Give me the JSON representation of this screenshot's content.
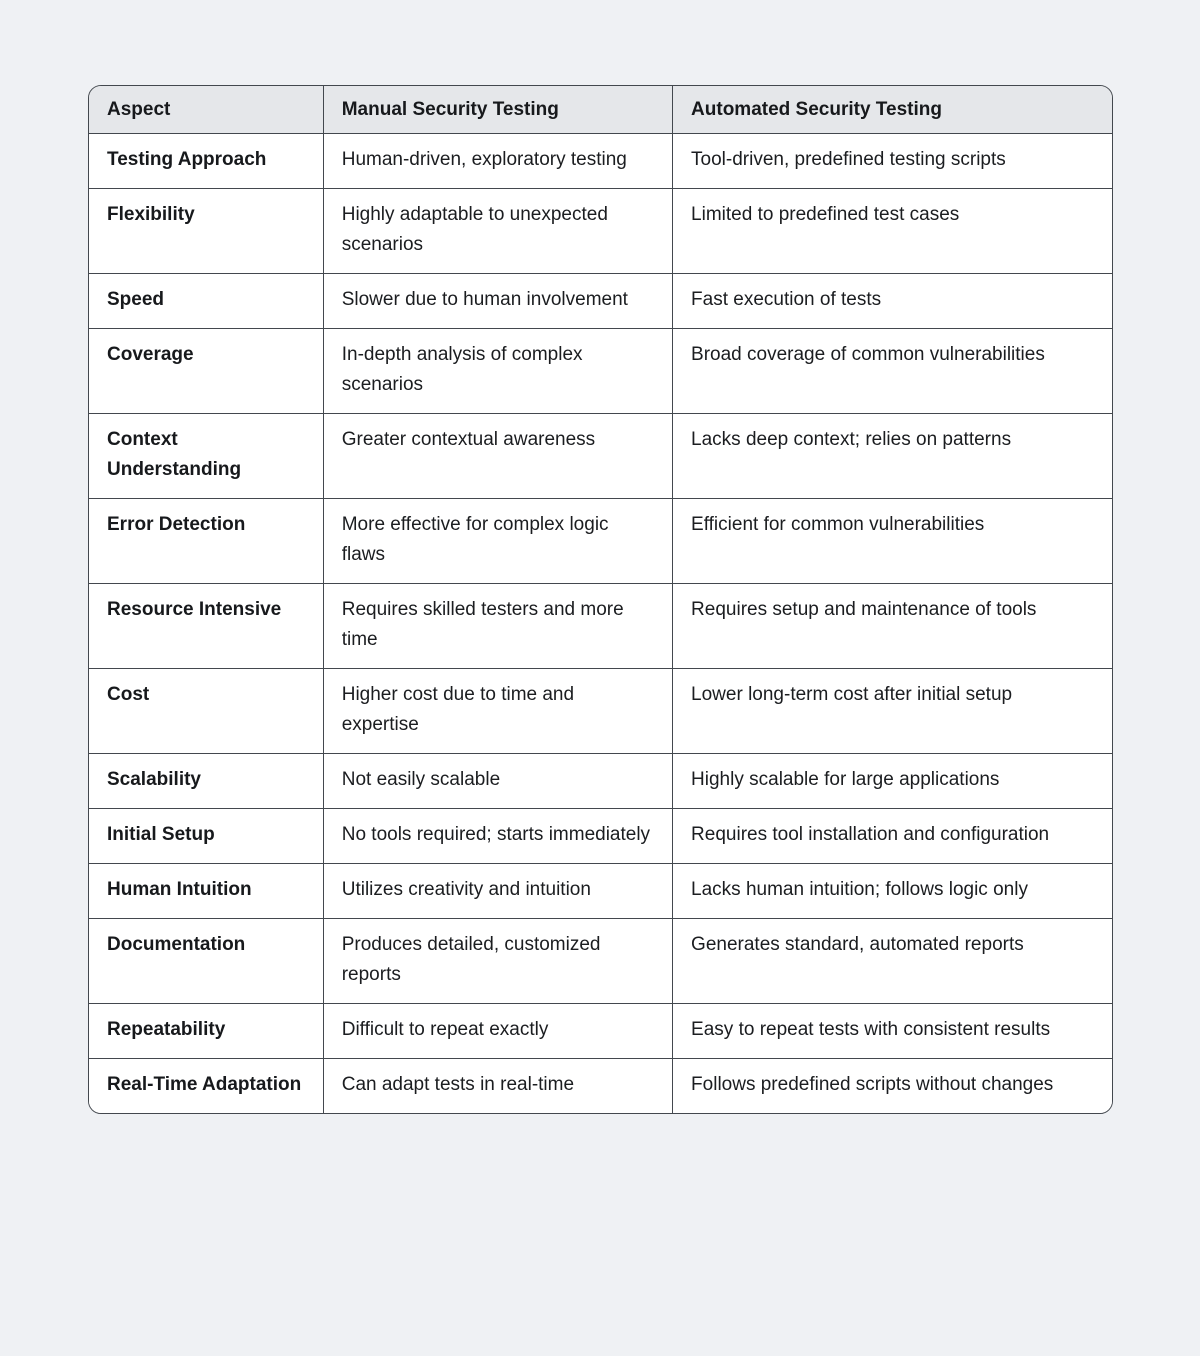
{
  "colors": {
    "page_background": "#eff1f4",
    "header_background": "#e5e7ea",
    "body_background": "#ffffff",
    "border": "#43484e",
    "text": "#1b1d20"
  },
  "table": {
    "columns": [
      "Aspect",
      "Manual Security Testing",
      "Automated Security Testing"
    ],
    "rows": [
      {
        "aspect": "Testing Approach",
        "manual": "Human-driven, exploratory testing",
        "automated": "Tool-driven, predefined testing scripts"
      },
      {
        "aspect": "Flexibility",
        "manual": "Highly adaptable to unexpected scenarios",
        "automated": "Limited to predefined test cases"
      },
      {
        "aspect": "Speed",
        "manual": "Slower due to human involvement",
        "automated": "Fast execution of tests"
      },
      {
        "aspect": "Coverage",
        "manual": "In-depth analysis of complex scenarios",
        "automated": "Broad coverage of common vulnerabilities"
      },
      {
        "aspect": "Context Understanding",
        "manual": "Greater contextual awareness",
        "automated": "Lacks deep context; relies on patterns"
      },
      {
        "aspect": "Error Detection",
        "manual": "More effective for complex logic flaws",
        "automated": "Efficient for common vulnerabilities"
      },
      {
        "aspect": "Resource Intensive",
        "manual": "Requires skilled testers and more time",
        "automated": "Requires setup and maintenance of tools"
      },
      {
        "aspect": "Cost",
        "manual": "Higher cost due to time and expertise",
        "automated": "Lower long-term cost after initial setup"
      },
      {
        "aspect": "Scalability",
        "manual": "Not easily scalable",
        "automated": "Highly scalable for large applications"
      },
      {
        "aspect": "Initial Setup",
        "manual": "No tools required; starts immediately",
        "automated": "Requires tool installation and configuration"
      },
      {
        "aspect": "Human Intuition",
        "manual": "Utilizes creativity and intuition",
        "automated": "Lacks human intuition; follows logic only"
      },
      {
        "aspect": "Documentation",
        "manual": "Produces detailed, customized reports",
        "automated": "Generates standard, automated reports"
      },
      {
        "aspect": "Repeatability",
        "manual": "Difficult to repeat exactly",
        "automated": "Easy to repeat tests with consistent results"
      },
      {
        "aspect": "Real-Time Adaptation",
        "manual": "Can adapt tests in real-time",
        "automated": "Follows predefined scripts without changes"
      }
    ]
  }
}
